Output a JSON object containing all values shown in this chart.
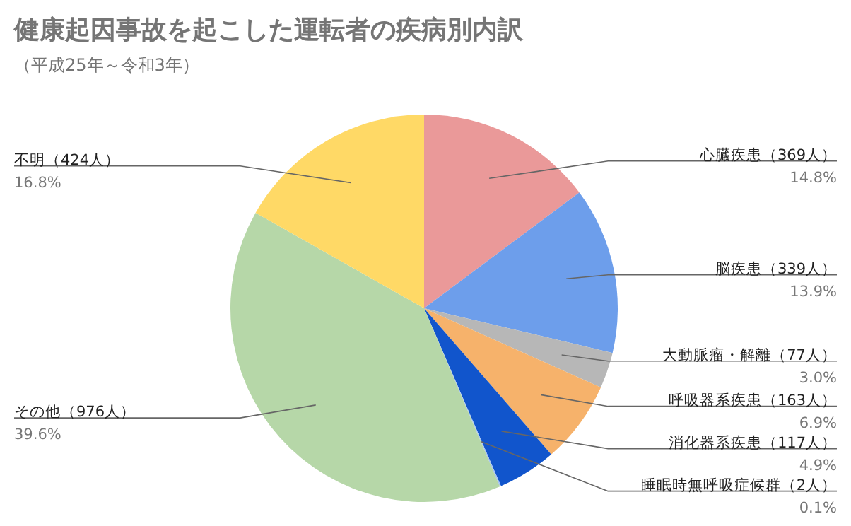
{
  "chart_data": {
    "type": "pie",
    "title": "健康起因事故を起こした運転者の疾病別内訳",
    "subtitle": "（平成25年～令和3年）",
    "categories": [
      "心臓疾患（369人）",
      "脳疾患（339人）",
      "大動脈瘤・解離（77人）",
      "呼吸器系疾患（163人）",
      "消化器系疾患（117人）",
      "睡眠時無呼吸症候群（2人）",
      "その他（976人）",
      "不明（424人）"
    ],
    "values": [
      14.8,
      13.9,
      3.0,
      6.9,
      4.9,
      0.1,
      39.6,
      16.8
    ],
    "colors": [
      "#ea9999",
      "#6d9eeb",
      "#b7b7b7",
      "#f6b26b",
      "#1155cc",
      "#a4c2f4",
      "#b6d7a8",
      "#ffd966"
    ],
    "value_labels": [
      "14.8%",
      "13.9%",
      "3.0%",
      "6.9%",
      "4.9%",
      "0.1%",
      "39.6%",
      "16.8%"
    ]
  }
}
